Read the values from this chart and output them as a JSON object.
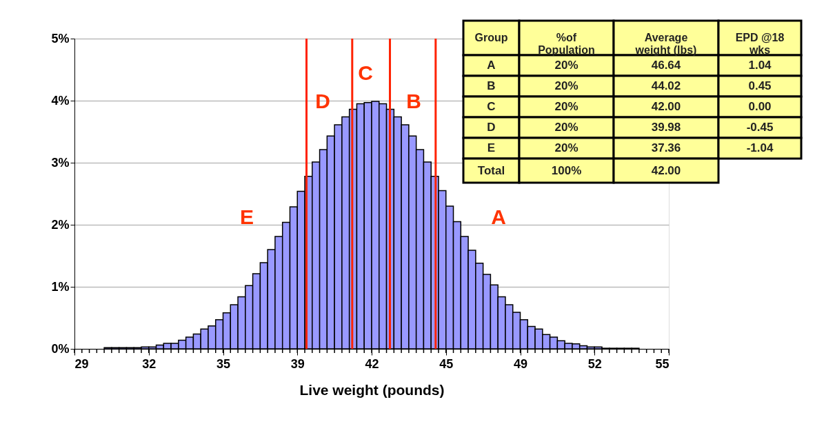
{
  "chart_data": [
    {
      "type": "histogram",
      "xlabel": "Live weight (pounds)",
      "bins": [
        29,
        29.325,
        29.65,
        29.975,
        30.3,
        30.625,
        30.95,
        31.275,
        31.6,
        31.925,
        32.25,
        32.575,
        32.9,
        33.225,
        33.55,
        33.875,
        34.2,
        34.525,
        34.85,
        35.175,
        35.5,
        35.825,
        36.15,
        36.475,
        36.8,
        37.125,
        37.45,
        37.775,
        38.1,
        38.425,
        38.75,
        39.075,
        39.4,
        39.725,
        40.05,
        40.375,
        40.7,
        41.025,
        41.35,
        41.675,
        42,
        42.325,
        42.65,
        42.975,
        43.3,
        43.625,
        43.95,
        44.275,
        44.6,
        44.925,
        45.25,
        45.575,
        45.9,
        46.225,
        46.55,
        46.875,
        47.2,
        47.525,
        47.85,
        48.175,
        48.5,
        48.825,
        49.15,
        49.475,
        49.8,
        50.125,
        50.45,
        50.775,
        51.1,
        51.425,
        51.75,
        52.075,
        52.4,
        52.725,
        53.05,
        53.375,
        53.7,
        54.025,
        54.35,
        54.675,
        55
      ],
      "values": [
        0,
        0,
        0,
        0,
        0.02,
        0.02,
        0.02,
        0.02,
        0.02,
        0.03,
        0.03,
        0.06,
        0.09,
        0.09,
        0.14,
        0.19,
        0.24,
        0.32,
        0.37,
        0.47,
        0.58,
        0.71,
        0.84,
        1.02,
        1.21,
        1.39,
        1.6,
        1.81,
        2.04,
        2.29,
        2.54,
        2.78,
        3.01,
        3.21,
        3.43,
        3.61,
        3.74,
        3.86,
        3.95,
        3.97,
        3.99,
        3.95,
        3.86,
        3.74,
        3.61,
        3.43,
        3.21,
        3.01,
        2.78,
        2.55,
        2.3,
        2.05,
        1.81,
        1.59,
        1.38,
        1.2,
        1.03,
        0.84,
        0.71,
        0.59,
        0.47,
        0.36,
        0.32,
        0.23,
        0.19,
        0.13,
        0.09,
        0.08,
        0.05,
        0.03,
        0.03,
        0.01,
        0.01,
        0.01,
        0.01,
        0.01,
        0,
        0,
        0,
        0
      ],
      "color": "#9999ff",
      "xlim": [
        29,
        55
      ],
      "xticks": [
        29,
        {
          "value": 32.25,
          "label": "32"
        },
        {
          "value": 35.5,
          "label": "35"
        },
        {
          "value": 38.75,
          "label": "39"
        },
        42,
        {
          "value": 45.25,
          "label": "45"
        },
        {
          "value": 48.5,
          "label": "49"
        },
        {
          "value": 51.75,
          "label": "52"
        },
        55
      ],
      "ylim": [
        0,
        5
      ],
      "yticks": [
        {
          "value": 0,
          "label": "0%"
        },
        {
          "value": 1,
          "label": "1%"
        },
        {
          "value": 2,
          "label": "2%"
        },
        {
          "value": 3,
          "label": "3%"
        },
        {
          "value": 4,
          "label": "4%"
        },
        {
          "value": 5,
          "label": "5%"
        }
      ],
      "grid": "y",
      "ref_lines": [
        {
          "axis": "x",
          "value": 39.15,
          "color": "#ff2200"
        },
        {
          "axis": "x",
          "value": 41.15,
          "color": "#ff2200"
        },
        {
          "axis": "x",
          "value": 42.8,
          "color": "#ff2200"
        },
        {
          "axis": "x",
          "value": 44.8,
          "color": "#ff2200"
        }
      ],
      "annotations": [
        "E",
        "D",
        "C",
        "B",
        "A"
      ]
    },
    {
      "type": "other",
      "categories": [
        "Group",
        "%of\nPopulation",
        "Average\nweight (lbs)",
        "EPD @18\nwks"
      ],
      "cell_labels": [
        [
          "A",
          "20%",
          "46.64",
          "1.04"
        ],
        [
          "B",
          "20%",
          "44.02",
          "0.45"
        ],
        [
          "C",
          "20%",
          "42.00",
          "0.00"
        ],
        [
          "D",
          "20%",
          "39.98",
          "-0.45"
        ],
        [
          "E",
          "20%",
          "37.36",
          "-1.04"
        ],
        [
          "Total",
          "100%",
          "42.00"
        ]
      ]
    }
  ]
}
